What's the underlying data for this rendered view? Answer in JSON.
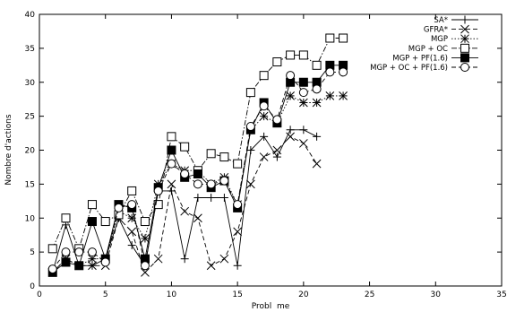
{
  "chart_data": {
    "type": "line",
    "title": "",
    "xlabel": "Probl  me",
    "ylabel": "Nombre d'actions",
    "xlim": [
      0,
      35
    ],
    "ylim": [
      0,
      40
    ],
    "xticks": [
      0,
      5,
      10,
      15,
      20,
      25,
      30,
      35
    ],
    "yticks": [
      0,
      5,
      10,
      15,
      20,
      25,
      30,
      35,
      40
    ],
    "grid": false,
    "legend_position": "top-right",
    "series": [
      {
        "name": "SA*",
        "marker": "plus",
        "dash": "solid",
        "points": [
          [
            1,
            2
          ],
          [
            2,
            9
          ],
          [
            3,
            3
          ],
          [
            4,
            3
          ],
          [
            5,
            4
          ],
          [
            6,
            10
          ],
          [
            7,
            6
          ],
          [
            8,
            3
          ],
          [
            9,
            14
          ],
          [
            10,
            14
          ],
          [
            11,
            4
          ],
          [
            12,
            13
          ],
          [
            13,
            13
          ],
          [
            14,
            13
          ],
          [
            15,
            3
          ],
          [
            16,
            20
          ],
          [
            17,
            22
          ],
          [
            18,
            19
          ],
          [
            19,
            23
          ],
          [
            20,
            23
          ],
          [
            21,
            22
          ]
        ]
      },
      {
        "name": "GFRA*",
        "marker": "x",
        "dash": "dashed",
        "points": [
          [
            1,
            2
          ],
          [
            2,
            4
          ],
          [
            3,
            3
          ],
          [
            4,
            3
          ],
          [
            5,
            3
          ],
          [
            6,
            10
          ],
          [
            7,
            8
          ],
          [
            8,
            2
          ],
          [
            9,
            4
          ],
          [
            10,
            15
          ],
          [
            11,
            11
          ],
          [
            12,
            10
          ],
          [
            13,
            3
          ],
          [
            14,
            4
          ],
          [
            15,
            8
          ],
          [
            16,
            15
          ],
          [
            17,
            19
          ],
          [
            18,
            20
          ],
          [
            19,
            22
          ],
          [
            20,
            21
          ],
          [
            21,
            18
          ]
        ]
      },
      {
        "name": "MGP",
        "marker": "asterisk",
        "dash": "dotted",
        "points": [
          [
            1,
            2
          ],
          [
            2,
            4
          ],
          [
            3,
            3
          ],
          [
            4,
            4
          ],
          [
            5,
            4
          ],
          [
            6,
            11
          ],
          [
            7,
            10
          ],
          [
            8,
            7
          ],
          [
            9,
            15
          ],
          [
            10,
            18
          ],
          [
            11,
            17
          ],
          [
            12,
            17
          ],
          [
            13,
            15
          ],
          [
            14,
            16
          ],
          [
            15,
            12
          ],
          [
            16,
            23
          ],
          [
            17,
            25
          ],
          [
            18,
            24
          ],
          [
            19,
            28
          ],
          [
            20,
            27
          ],
          [
            21,
            27
          ],
          [
            22,
            28
          ],
          [
            23,
            28
          ]
        ]
      },
      {
        "name": "MGP + OC",
        "marker": "square-open",
        "dash": "dashdot",
        "points": [
          [
            1,
            5.5
          ],
          [
            2,
            10
          ],
          [
            3,
            5.5
          ],
          [
            4,
            12
          ],
          [
            5,
            9.5
          ],
          [
            6,
            10.5
          ],
          [
            7,
            14
          ],
          [
            8,
            9.5
          ],
          [
            9,
            12
          ],
          [
            10,
            22
          ],
          [
            11,
            20.5
          ],
          [
            12,
            17
          ],
          [
            13,
            19.5
          ],
          [
            14,
            19
          ],
          [
            15,
            18
          ],
          [
            16,
            28.5
          ],
          [
            17,
            31
          ],
          [
            18,
            33
          ],
          [
            19,
            34
          ],
          [
            20,
            34
          ],
          [
            21,
            32.5
          ],
          [
            22,
            36.5
          ],
          [
            23,
            36.5
          ]
        ]
      },
      {
        "name": "MGP + PF(1.6)",
        "marker": "square-filled",
        "dash": "solid",
        "points": [
          [
            1,
            2
          ],
          [
            2,
            3.5
          ],
          [
            3,
            3
          ],
          [
            4,
            9.5
          ],
          [
            5,
            4
          ],
          [
            6,
            12
          ],
          [
            7,
            11.5
          ],
          [
            8,
            4
          ],
          [
            9,
            14.5
          ],
          [
            10,
            20
          ],
          [
            11,
            16
          ],
          [
            12,
            16.5
          ],
          [
            13,
            14.5
          ],
          [
            14,
            15.5
          ],
          [
            15,
            11.5
          ],
          [
            16,
            23
          ],
          [
            17,
            27
          ],
          [
            18,
            24
          ],
          [
            19,
            30
          ],
          [
            20,
            30
          ],
          [
            21,
            30
          ],
          [
            22,
            32.5
          ],
          [
            23,
            32.5
          ]
        ]
      },
      {
        "name": "MGP + OC + PF(1.6)",
        "marker": "circle-open",
        "dash": "dashed",
        "points": [
          [
            1,
            2.5
          ],
          [
            2,
            5
          ],
          [
            3,
            5
          ],
          [
            4,
            5
          ],
          [
            5,
            3.5
          ],
          [
            6,
            11.5
          ],
          [
            7,
            12
          ],
          [
            8,
            3
          ],
          [
            9,
            14
          ],
          [
            10,
            18
          ],
          [
            11,
            16.5
          ],
          [
            12,
            15
          ],
          [
            13,
            15
          ],
          [
            14,
            15.5
          ],
          [
            15,
            12
          ],
          [
            16,
            23.5
          ],
          [
            17,
            26.5
          ],
          [
            18,
            24.5
          ],
          [
            19,
            31
          ],
          [
            20,
            28.5
          ],
          [
            21,
            29
          ],
          [
            22,
            31.5
          ],
          [
            23,
            31.5
          ]
        ]
      }
    ]
  }
}
